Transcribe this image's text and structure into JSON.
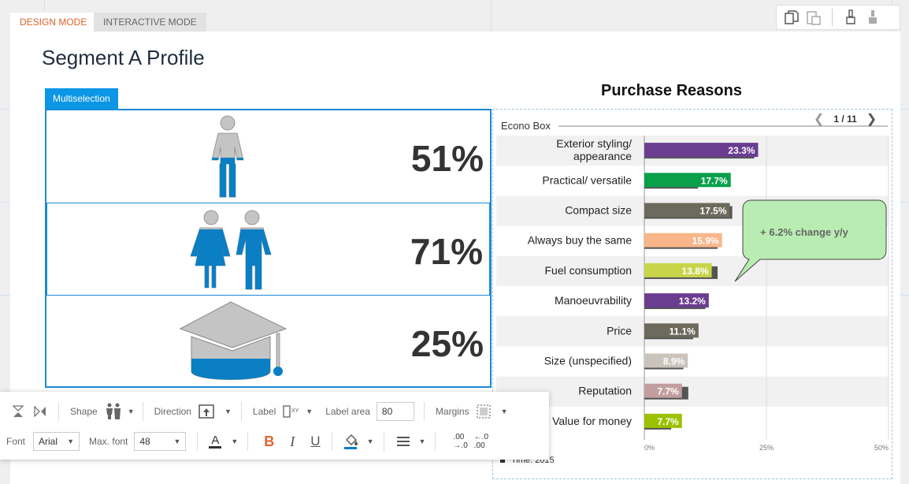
{
  "tabs": [
    {
      "label": "DESIGN MODE",
      "active": true
    },
    {
      "label": "INTERACTIVE MODE",
      "active": false
    }
  ],
  "top_tools": [
    "copy-icon",
    "paste-icon",
    "brush-icon",
    "brush-fill-icon"
  ],
  "page": {
    "title": "Segment A Profile",
    "multiselection_tag": "Multiselection"
  },
  "profile": {
    "rows": [
      {
        "icon": "woman-icon",
        "value": "51%",
        "fraction": 0.51
      },
      {
        "icon": "couple-icon",
        "value": "71%",
        "fraction": 0.71
      },
      {
        "icon": "graduation-cap-icon",
        "value": "25%",
        "fraction": 0.25
      }
    ],
    "fill_color": "#0a7fc4",
    "base_color": "#c4c4c4"
  },
  "chart_data": {
    "type": "bar",
    "title": "Purchase Reasons",
    "group": "Econo Box",
    "pager": {
      "current": "1 / 11"
    },
    "categories": [
      "Exterior styling/ appearance",
      "Practical/ versatile",
      "Compact size",
      "Always buy the same",
      "Fuel consumption",
      "Manoeuvrability",
      "Price",
      "Size (unspecified)",
      "Reputation",
      "Value for money"
    ],
    "category_lines": [
      [
        "Exterior styling/",
        "appearance"
      ],
      [
        "Practical/ versatile"
      ],
      [
        "Compact size"
      ],
      [
        "Always buy the same"
      ],
      [
        "Fuel consumption"
      ],
      [
        "Manoeuvrability"
      ],
      [
        "Price"
      ],
      [
        "Size (unspecified)"
      ],
      [
        "Reputation"
      ],
      [
        "Value for money"
      ]
    ],
    "series": [
      {
        "values": [
          23.3,
          17.7,
          17.5,
          15.9,
          13.8,
          13.2,
          11.1,
          8.9,
          7.7,
          7.7
        ]
      },
      {
        "values": [
          22.5,
          11.0,
          18.0,
          15.0,
          15.0,
          12.5,
          10.0,
          8.0,
          9.0,
          5.5
        ]
      }
    ],
    "value_labels": [
      "23.3%",
      "17.7%",
      "17.5%",
      "15.9%",
      "13.8%",
      "13.2%",
      "11.1%",
      "8.9%",
      "7.7%",
      "7.7%"
    ],
    "colors": [
      "#6a3d91",
      "#0aa04a",
      "#6c6a5c",
      "#f8b68a",
      "#c8d44a",
      "#6a3d91",
      "#6c6a5c",
      "#cbc4bd",
      "#c39ea0",
      "#9bc100"
    ],
    "shadow_color": "#555555",
    "xlim": [
      0,
      50
    ],
    "x_ticks": [
      "0%",
      "25%",
      "50%"
    ],
    "callout": "+ 6.2% change y/y",
    "time_legend": "Time: 2015"
  },
  "toolbar": {
    "shape_label": "Shape",
    "direction_label": "Direction",
    "label_label": "Label",
    "label_area_label": "Label area",
    "label_area_value": "80",
    "margins_label": "Margins",
    "font_label": "Font",
    "font_value": "Arial",
    "max_font_label": "Max. font",
    "max_font_value": "48",
    "decimals_add": ".00\n→.0",
    "decimals_remove": "←.0\n.00"
  }
}
